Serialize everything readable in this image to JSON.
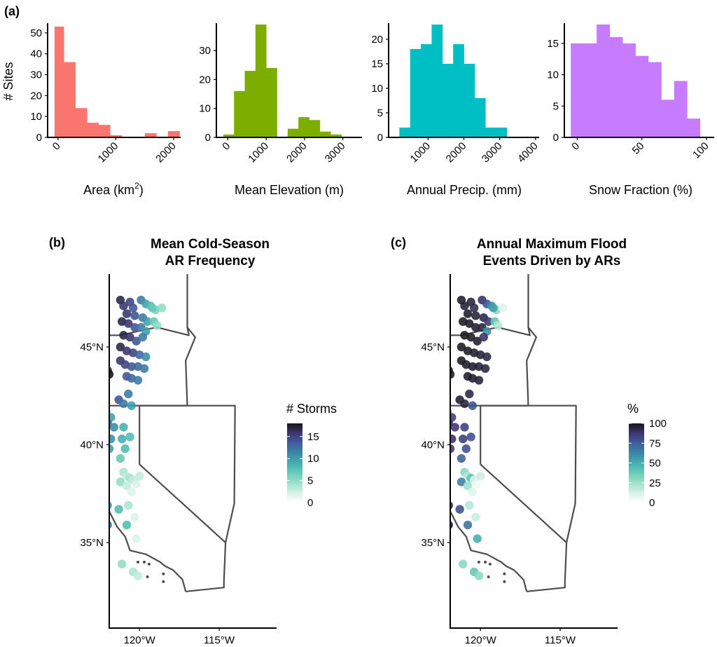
{
  "panel_labels": {
    "a": "(a)",
    "b": "(b)",
    "c": "(c)"
  },
  "chart_data": [
    {
      "type": "bar",
      "panel": "(a)",
      "xlabel": "Area (km",
      "xlabel_sup": "2",
      "xlabel_close": ")",
      "ylabel": "# Sites",
      "color": "#F8766D",
      "xlim": [
        -180,
        2120
      ],
      "ylim": [
        0,
        54
      ],
      "xticks": [
        0,
        1000,
        2000
      ],
      "yticks": [
        0,
        10,
        20,
        30,
        40,
        50
      ],
      "bins": [
        [
          -60,
          100,
          53
        ],
        [
          100,
          300,
          36
        ],
        [
          300,
          500,
          14
        ],
        [
          500,
          700,
          7
        ],
        [
          700,
          900,
          6
        ],
        [
          900,
          1100,
          1
        ],
        [
          1100,
          1300,
          0
        ],
        [
          1300,
          1500,
          0
        ],
        [
          1500,
          1700,
          2
        ],
        [
          1700,
          1900,
          0
        ],
        [
          1900,
          2100,
          3
        ]
      ]
    },
    {
      "type": "bar",
      "panel": "(a)",
      "xlabel": "Mean Elevation (m)",
      "color": "#7CAE00",
      "xlim": [
        -300,
        3500
      ],
      "ylim": [
        0,
        39
      ],
      "xticks": [
        0,
        1000,
        2000,
        3000
      ],
      "yticks": [
        0,
        10,
        20,
        30
      ],
      "bins": [
        [
          -120,
          160,
          1
        ],
        [
          160,
          440,
          16
        ],
        [
          440,
          720,
          23
        ],
        [
          720,
          1000,
          39
        ],
        [
          1000,
          1280,
          24
        ],
        [
          1280,
          1560,
          0
        ],
        [
          1560,
          1840,
          3
        ],
        [
          1840,
          2120,
          7
        ],
        [
          2120,
          2400,
          6
        ],
        [
          2400,
          2680,
          2
        ],
        [
          2680,
          2960,
          1
        ]
      ]
    },
    {
      "type": "bar",
      "panel": "(a)",
      "xlabel": "Annual Precip. (mm)",
      "color": "#00BFC4",
      "xlim": [
        -100,
        4100
      ],
      "ylim": [
        0,
        23
      ],
      "xticks": [
        1000,
        2000,
        3000,
        4000
      ],
      "yticks": [
        0,
        5,
        10,
        15,
        20
      ],
      "bins": [
        [
          200,
          500,
          2
        ],
        [
          500,
          800,
          18
        ],
        [
          800,
          1100,
          19
        ],
        [
          1100,
          1400,
          23
        ],
        [
          1400,
          1700,
          15
        ],
        [
          1700,
          2000,
          19
        ],
        [
          2000,
          2300,
          15
        ],
        [
          2300,
          2600,
          8
        ],
        [
          2600,
          2900,
          2
        ],
        [
          2900,
          3200,
          2
        ],
        [
          3200,
          3500,
          0
        ]
      ]
    },
    {
      "type": "bar",
      "panel": "(a)",
      "xlabel": "Snow Fraction (%)",
      "color": "#C77CFF",
      "xlim": [
        -10,
        106
      ],
      "ylim": [
        0,
        18
      ],
      "xticks": [
        0,
        50,
        100
      ],
      "yticks": [
        0,
        5,
        10,
        15
      ],
      "bins": [
        [
          -5,
          5,
          15
        ],
        [
          5,
          15,
          15
        ],
        [
          15,
          25,
          18
        ],
        [
          25,
          35,
          16
        ],
        [
          35,
          45,
          15
        ],
        [
          45,
          55,
          13
        ],
        [
          55,
          65,
          12
        ],
        [
          65,
          75,
          6
        ],
        [
          75,
          85,
          9
        ],
        [
          85,
          95,
          3
        ],
        [
          95,
          105,
          0
        ]
      ]
    },
    {
      "type": "scatter",
      "panel": "(b)",
      "title": "Mean Cold-Season",
      "title2": "AR Frequency",
      "legend_title": "# Storms",
      "legend_ticks": [
        0,
        5,
        10,
        15
      ],
      "value_range": [
        0,
        18
      ],
      "xticks": [
        -120,
        -115
      ],
      "xtick_labels": [
        "120°W",
        "115°W"
      ],
      "yticks": [
        35,
        40,
        45
      ],
      "ytick_labels": [
        "35°N",
        "40°N",
        "45°N"
      ],
      "points": [
        [
          -121.2,
          47.4,
          17
        ],
        [
          -121.0,
          47.1,
          16
        ],
        [
          -120.6,
          47.3,
          15
        ],
        [
          -120.4,
          47.0,
          14
        ],
        [
          -119.9,
          47.4,
          12
        ],
        [
          -119.6,
          47.2,
          10
        ],
        [
          -119.3,
          47.1,
          8
        ],
        [
          -119.0,
          46.9,
          6
        ],
        [
          -118.6,
          47.0,
          5
        ],
        [
          -120.8,
          46.7,
          16
        ],
        [
          -120.3,
          46.6,
          14
        ],
        [
          -119.8,
          46.5,
          12
        ],
        [
          -119.5,
          46.3,
          10
        ],
        [
          -119.1,
          46.3,
          7
        ],
        [
          -118.9,
          46.1,
          5
        ],
        [
          -121.1,
          46.3,
          17
        ],
        [
          -120.7,
          46.2,
          16
        ],
        [
          -120.3,
          46.0,
          14
        ],
        [
          -119.9,
          46.0,
          12
        ],
        [
          -119.6,
          45.8,
          10
        ],
        [
          -121.0,
          45.6,
          17
        ],
        [
          -120.6,
          45.5,
          16
        ],
        [
          -120.2,
          45.3,
          14
        ],
        [
          -119.8,
          45.5,
          12
        ],
        [
          -121.2,
          45.0,
          17
        ],
        [
          -120.8,
          44.8,
          16
        ],
        [
          -120.4,
          44.7,
          15
        ],
        [
          -120.0,
          44.6,
          13
        ],
        [
          -119.6,
          44.5,
          11
        ],
        [
          -121.2,
          44.3,
          16
        ],
        [
          -120.9,
          44.1,
          15
        ],
        [
          -120.5,
          44.0,
          14
        ],
        [
          -120.1,
          44.0,
          13
        ],
        [
          -119.7,
          43.9,
          12
        ],
        [
          -122.0,
          43.8,
          17
        ],
        [
          -121.9,
          43.6,
          18
        ],
        [
          -120.8,
          43.5,
          14
        ],
        [
          -120.5,
          43.4,
          13
        ],
        [
          -120.1,
          43.3,
          12
        ],
        [
          -120.7,
          42.6,
          12
        ],
        [
          -121.3,
          42.3,
          14
        ],
        [
          -121.0,
          42.1,
          12
        ],
        [
          -120.5,
          42.0,
          10
        ],
        [
          -122.1,
          41.7,
          12
        ],
        [
          -121.8,
          41.4,
          10
        ],
        [
          -122.0,
          41.1,
          13
        ],
        [
          -121.6,
          40.9,
          11
        ],
        [
          -121.0,
          40.9,
          9
        ],
        [
          -122.2,
          40.6,
          14
        ],
        [
          -121.8,
          40.3,
          11
        ],
        [
          -121.1,
          40.3,
          9
        ],
        [
          -120.6,
          40.4,
          8
        ],
        [
          -122.3,
          40.0,
          13
        ],
        [
          -121.9,
          39.8,
          10
        ],
        [
          -120.9,
          39.8,
          8
        ],
        [
          -122.4,
          39.4,
          12
        ],
        [
          -121.2,
          39.3,
          7
        ],
        [
          -121.0,
          38.6,
          4
        ],
        [
          -120.8,
          38.4,
          3
        ],
        [
          -120.6,
          38.3,
          4
        ],
        [
          -120.4,
          38.2,
          3
        ],
        [
          -120.2,
          38.0,
          2
        ],
        [
          -120.0,
          38.4,
          3
        ],
        [
          -121.2,
          38.1,
          5
        ],
        [
          -120.8,
          37.9,
          3
        ],
        [
          -120.5,
          37.6,
          2
        ],
        [
          -120.7,
          36.9,
          4
        ],
        [
          -120.3,
          36.3,
          2
        ],
        [
          -122.0,
          36.9,
          10
        ],
        [
          -121.3,
          36.7,
          8
        ],
        [
          -122.0,
          35.9,
          12
        ],
        [
          -120.8,
          35.9,
          8
        ],
        [
          -120.2,
          35.2,
          2
        ],
        [
          -121.1,
          33.9,
          5
        ],
        [
          -120.4,
          33.5,
          4
        ],
        [
          -120.1,
          33.3,
          3
        ],
        [
          -119.2,
          47.0,
          7
        ]
      ]
    },
    {
      "type": "scatter",
      "panel": "(c)",
      "title": "Annual Maximum Flood",
      "title2": "Events Driven by ARs",
      "legend_title": "%",
      "legend_ticks": [
        0,
        25,
        50,
        75,
        100
      ],
      "value_range": [
        0,
        100
      ],
      "xticks": [
        -120,
        -115
      ],
      "xtick_labels": [
        "120°W",
        "115°W"
      ],
      "yticks": [
        35,
        40,
        45
      ],
      "ytick_labels": [
        "35°N",
        "40°N",
        "45°N"
      ],
      "points": [
        [
          -121.2,
          47.4,
          98
        ],
        [
          -121.0,
          47.1,
          96
        ],
        [
          -120.6,
          47.3,
          95
        ],
        [
          -120.4,
          47.0,
          92
        ],
        [
          -119.9,
          47.4,
          90
        ],
        [
          -119.6,
          47.2,
          80
        ],
        [
          -119.3,
          47.1,
          60
        ],
        [
          -119.0,
          46.9,
          30
        ],
        [
          -118.6,
          47.0,
          10
        ],
        [
          -120.8,
          46.7,
          98
        ],
        [
          -120.3,
          46.6,
          96
        ],
        [
          -119.8,
          46.5,
          94
        ],
        [
          -119.5,
          46.3,
          88
        ],
        [
          -119.1,
          46.3,
          40
        ],
        [
          -118.9,
          46.1,
          20
        ],
        [
          -121.1,
          46.3,
          99
        ],
        [
          -120.7,
          46.2,
          98
        ],
        [
          -120.3,
          46.0,
          97
        ],
        [
          -119.9,
          46.0,
          95
        ],
        [
          -119.6,
          45.8,
          60
        ],
        [
          -121.0,
          45.6,
          99
        ],
        [
          -120.6,
          45.5,
          98
        ],
        [
          -120.2,
          45.3,
          97
        ],
        [
          -119.8,
          45.5,
          90
        ],
        [
          -121.2,
          45.0,
          99
        ],
        [
          -120.8,
          44.8,
          98
        ],
        [
          -120.4,
          44.7,
          97
        ],
        [
          -120.0,
          44.6,
          96
        ],
        [
          -119.6,
          44.5,
          94
        ],
        [
          -121.2,
          44.3,
          99
        ],
        [
          -120.9,
          44.1,
          98
        ],
        [
          -120.5,
          44.0,
          97
        ],
        [
          -120.1,
          44.0,
          96
        ],
        [
          -119.7,
          43.9,
          95
        ],
        [
          -122.0,
          43.8,
          99
        ],
        [
          -121.9,
          43.6,
          99
        ],
        [
          -120.8,
          43.5,
          98
        ],
        [
          -120.5,
          43.4,
          97
        ],
        [
          -120.1,
          43.3,
          96
        ],
        [
          -120.7,
          42.6,
          94
        ],
        [
          -121.3,
          42.3,
          97
        ],
        [
          -121.0,
          42.1,
          95
        ],
        [
          -120.5,
          42.0,
          80
        ],
        [
          -122.1,
          41.7,
          90
        ],
        [
          -121.8,
          41.4,
          85
        ],
        [
          -122.0,
          41.1,
          92
        ],
        [
          -121.6,
          40.9,
          88
        ],
        [
          -121.0,
          40.9,
          85
        ],
        [
          -122.2,
          40.6,
          95
        ],
        [
          -121.8,
          40.3,
          90
        ],
        [
          -121.1,
          40.3,
          85
        ],
        [
          -120.6,
          40.4,
          80
        ],
        [
          -122.3,
          40.0,
          92
        ],
        [
          -121.9,
          39.8,
          88
        ],
        [
          -120.9,
          39.8,
          80
        ],
        [
          -122.4,
          39.4,
          85
        ],
        [
          -121.2,
          39.3,
          75
        ],
        [
          -121.0,
          38.6,
          30
        ],
        [
          -120.8,
          38.4,
          20
        ],
        [
          -120.6,
          38.3,
          40
        ],
        [
          -120.4,
          38.2,
          10
        ],
        [
          -120.2,
          38.0,
          5
        ],
        [
          -120.0,
          38.4,
          15
        ],
        [
          -121.2,
          38.1,
          65
        ],
        [
          -120.8,
          37.9,
          25
        ],
        [
          -120.5,
          37.6,
          10
        ],
        [
          -120.7,
          36.9,
          20
        ],
        [
          -120.3,
          36.3,
          15
        ],
        [
          -122.0,
          36.9,
          95
        ],
        [
          -121.3,
          36.7,
          80
        ],
        [
          -122.0,
          35.9,
          98
        ],
        [
          -120.8,
          35.9,
          70
        ],
        [
          -120.2,
          35.2,
          50
        ],
        [
          -121.1,
          33.9,
          30
        ],
        [
          -120.4,
          33.5,
          40
        ],
        [
          -120.1,
          33.3,
          30
        ],
        [
          -119.2,
          47.0,
          55
        ]
      ]
    }
  ]
}
